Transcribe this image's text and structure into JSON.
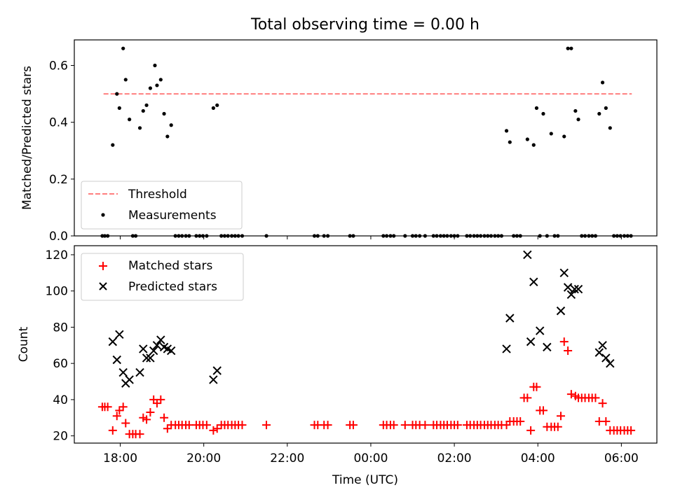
{
  "chart_data": [
    {
      "type": "scatter",
      "title": "Total observing time = 0.00 h",
      "xlabel": "",
      "ylabel": "Matched/Predicted stars",
      "x_range_hours": [
        16.9,
        30.85
      ],
      "ylim": [
        0,
        0.69
      ],
      "yticks": [
        0.0,
        0.2,
        0.4,
        0.6
      ],
      "ytick_labels": [
        "0.0",
        "0.2",
        "0.4",
        "0.6"
      ],
      "threshold": {
        "name": "Threshold",
        "value": 0.5,
        "x_start_hours": 17.6,
        "x_end_hours": 30.25,
        "color": "#ff7f7f",
        "style": "dashed"
      },
      "legend": {
        "placement": "lower-left",
        "entries": [
          "Threshold",
          "Measurements"
        ]
      },
      "series": [
        {
          "name": "Measurements",
          "color": "#000000",
          "marker": "dot",
          "points": [
            [
              17.82,
              0.32
            ],
            [
              17.92,
              0.5
            ],
            [
              17.98,
              0.45
            ],
            [
              18.07,
              0.66
            ],
            [
              18.13,
              0.55
            ],
            [
              18.22,
              0.41
            ],
            [
              18.47,
              0.38
            ],
            [
              18.55,
              0.44
            ],
            [
              18.63,
              0.46
            ],
            [
              18.72,
              0.52
            ],
            [
              18.83,
              0.6
            ],
            [
              18.88,
              0.53
            ],
            [
              18.97,
              0.55
            ],
            [
              19.05,
              0.43
            ],
            [
              19.13,
              0.35
            ],
            [
              19.22,
              0.39
            ],
            [
              20.23,
              0.45
            ],
            [
              20.32,
              0.46
            ],
            [
              27.25,
              0.37
            ],
            [
              27.33,
              0.33
            ],
            [
              27.75,
              0.34
            ],
            [
              27.9,
              0.32
            ],
            [
              27.97,
              0.45
            ],
            [
              28.13,
              0.43
            ],
            [
              28.32,
              0.36
            ],
            [
              28.63,
              0.35
            ],
            [
              28.72,
              0.66
            ],
            [
              28.8,
              0.66
            ],
            [
              28.9,
              0.44
            ],
            [
              28.97,
              0.41
            ],
            [
              29.47,
              0.43
            ],
            [
              29.55,
              0.54
            ],
            [
              29.63,
              0.45
            ],
            [
              29.73,
              0.38
            ],
            [
              17.57,
              0.0
            ],
            [
              17.63,
              0.0
            ],
            [
              17.7,
              0.0
            ],
            [
              18.3,
              0.0
            ],
            [
              18.37,
              0.0
            ],
            [
              19.32,
              0.0
            ],
            [
              19.4,
              0.0
            ],
            [
              19.48,
              0.0
            ],
            [
              19.57,
              0.0
            ],
            [
              19.65,
              0.0
            ],
            [
              19.82,
              0.0
            ],
            [
              19.9,
              0.0
            ],
            [
              19.98,
              0.0
            ],
            [
              20.07,
              0.0
            ],
            [
              20.42,
              0.0
            ],
            [
              20.5,
              0.0
            ],
            [
              20.58,
              0.0
            ],
            [
              20.67,
              0.0
            ],
            [
              20.75,
              0.0
            ],
            [
              20.83,
              0.0
            ],
            [
              20.92,
              0.0
            ],
            [
              21.5,
              0.0
            ],
            [
              22.65,
              0.0
            ],
            [
              22.73,
              0.0
            ],
            [
              22.88,
              0.0
            ],
            [
              22.97,
              0.0
            ],
            [
              23.5,
              0.0
            ],
            [
              23.58,
              0.0
            ],
            [
              24.3,
              0.0
            ],
            [
              24.38,
              0.0
            ],
            [
              24.47,
              0.0
            ],
            [
              24.55,
              0.0
            ],
            [
              24.82,
              0.0
            ],
            [
              25.0,
              0.0
            ],
            [
              25.08,
              0.0
            ],
            [
              25.17,
              0.0
            ],
            [
              25.3,
              0.0
            ],
            [
              25.5,
              0.0
            ],
            [
              25.58,
              0.0
            ],
            [
              25.67,
              0.0
            ],
            [
              25.75,
              0.0
            ],
            [
              25.83,
              0.0
            ],
            [
              25.92,
              0.0
            ],
            [
              26.0,
              0.0
            ],
            [
              26.08,
              0.0
            ],
            [
              26.3,
              0.0
            ],
            [
              26.38,
              0.0
            ],
            [
              26.47,
              0.0
            ],
            [
              26.55,
              0.0
            ],
            [
              26.63,
              0.0
            ],
            [
              26.72,
              0.0
            ],
            [
              26.8,
              0.0
            ],
            [
              26.88,
              0.0
            ],
            [
              26.97,
              0.0
            ],
            [
              27.05,
              0.0
            ],
            [
              27.13,
              0.0
            ],
            [
              27.42,
              0.0
            ],
            [
              27.5,
              0.0
            ],
            [
              27.58,
              0.0
            ],
            [
              28.05,
              0.0
            ],
            [
              28.22,
              0.0
            ],
            [
              28.4,
              0.0
            ],
            [
              28.48,
              0.0
            ],
            [
              29.05,
              0.0
            ],
            [
              29.13,
              0.0
            ],
            [
              29.22,
              0.0
            ],
            [
              29.3,
              0.0
            ],
            [
              29.38,
              0.0
            ],
            [
              29.82,
              0.0
            ],
            [
              29.9,
              0.0
            ],
            [
              29.98,
              0.0
            ],
            [
              30.07,
              0.0
            ],
            [
              30.15,
              0.0
            ],
            [
              30.23,
              0.0
            ]
          ]
        }
      ]
    },
    {
      "type": "scatter",
      "title": "",
      "xlabel": "Time (UTC)",
      "ylabel": "Count",
      "x_range_hours": [
        16.9,
        30.85
      ],
      "ylim": [
        16,
        125
      ],
      "yticks": [
        20,
        40,
        60,
        80,
        100,
        120
      ],
      "ytick_labels": [
        "20",
        "40",
        "60",
        "80",
        "100",
        "120"
      ],
      "xticks_hours": [
        18,
        20,
        22,
        24,
        26,
        28,
        30
      ],
      "xtick_labels": [
        "18:00",
        "20:00",
        "22:00",
        "00:00",
        "02:00",
        "04:00",
        "06:00"
      ],
      "legend": {
        "placement": "top-left",
        "entries": [
          "Matched stars",
          "Predicted stars"
        ]
      },
      "series": [
        {
          "name": "Matched stars",
          "color": "#ff0000",
          "marker": "plus",
          "points": [
            [
              17.57,
              36
            ],
            [
              17.63,
              36
            ],
            [
              17.7,
              36
            ],
            [
              17.82,
              23
            ],
            [
              17.92,
              31
            ],
            [
              17.98,
              34
            ],
            [
              18.07,
              36
            ],
            [
              18.13,
              27
            ],
            [
              18.22,
              21
            ],
            [
              18.3,
              21
            ],
            [
              18.37,
              21
            ],
            [
              18.47,
              21
            ],
            [
              18.55,
              30
            ],
            [
              18.63,
              29
            ],
            [
              18.72,
              33
            ],
            [
              18.8,
              40
            ],
            [
              18.88,
              38
            ],
            [
              18.97,
              40
            ],
            [
              19.05,
              30
            ],
            [
              19.13,
              24
            ],
            [
              19.22,
              26
            ],
            [
              19.32,
              26
            ],
            [
              19.4,
              26
            ],
            [
              19.48,
              26
            ],
            [
              19.57,
              26
            ],
            [
              19.65,
              26
            ],
            [
              19.82,
              26
            ],
            [
              19.9,
              26
            ],
            [
              19.98,
              26
            ],
            [
              20.07,
              26
            ],
            [
              20.23,
              23
            ],
            [
              20.32,
              24
            ],
            [
              20.42,
              26
            ],
            [
              20.5,
              26
            ],
            [
              20.58,
              26
            ],
            [
              20.67,
              26
            ],
            [
              20.75,
              26
            ],
            [
              20.83,
              26
            ],
            [
              20.92,
              26
            ],
            [
              21.5,
              26
            ],
            [
              22.65,
              26
            ],
            [
              22.73,
              26
            ],
            [
              22.88,
              26
            ],
            [
              22.97,
              26
            ],
            [
              23.5,
              26
            ],
            [
              23.58,
              26
            ],
            [
              24.3,
              26
            ],
            [
              24.38,
              26
            ],
            [
              24.47,
              26
            ],
            [
              24.55,
              26
            ],
            [
              24.82,
              26
            ],
            [
              25.0,
              26
            ],
            [
              25.08,
              26
            ],
            [
              25.17,
              26
            ],
            [
              25.3,
              26
            ],
            [
              25.5,
              26
            ],
            [
              25.58,
              26
            ],
            [
              25.67,
              26
            ],
            [
              25.75,
              26
            ],
            [
              25.83,
              26
            ],
            [
              25.92,
              26
            ],
            [
              26.0,
              26
            ],
            [
              26.08,
              26
            ],
            [
              26.3,
              26
            ],
            [
              26.38,
              26
            ],
            [
              26.47,
              26
            ],
            [
              26.55,
              26
            ],
            [
              26.63,
              26
            ],
            [
              26.72,
              26
            ],
            [
              26.8,
              26
            ],
            [
              26.88,
              26
            ],
            [
              26.97,
              26
            ],
            [
              27.05,
              26
            ],
            [
              27.13,
              26
            ],
            [
              27.25,
              26
            ],
            [
              27.33,
              28
            ],
            [
              27.42,
              28
            ],
            [
              27.5,
              28
            ],
            [
              27.58,
              28
            ],
            [
              27.67,
              41
            ],
            [
              27.75,
              41
            ],
            [
              27.83,
              23
            ],
            [
              27.9,
              47
            ],
            [
              27.97,
              47
            ],
            [
              28.05,
              34
            ],
            [
              28.13,
              34
            ],
            [
              28.22,
              25
            ],
            [
              28.32,
              25
            ],
            [
              28.4,
              25
            ],
            [
              28.48,
              25
            ],
            [
              28.55,
              31
            ],
            [
              28.63,
              72
            ],
            [
              28.72,
              67
            ],
            [
              28.8,
              43
            ],
            [
              28.9,
              42
            ],
            [
              28.97,
              41
            ],
            [
              29.05,
              41
            ],
            [
              29.13,
              41
            ],
            [
              29.22,
              41
            ],
            [
              29.3,
              41
            ],
            [
              29.38,
              41
            ],
            [
              29.47,
              28
            ],
            [
              29.55,
              38
            ],
            [
              29.63,
              28
            ],
            [
              29.73,
              23
            ],
            [
              29.82,
              23
            ],
            [
              29.9,
              23
            ],
            [
              29.98,
              23
            ],
            [
              30.07,
              23
            ],
            [
              30.15,
              23
            ],
            [
              30.23,
              23
            ]
          ]
        },
        {
          "name": "Predicted stars",
          "color": "#000000",
          "marker": "x",
          "points": [
            [
              17.82,
              72
            ],
            [
              17.92,
              62
            ],
            [
              17.98,
              76
            ],
            [
              18.07,
              55
            ],
            [
              18.13,
              49
            ],
            [
              18.22,
              51
            ],
            [
              18.47,
              55
            ],
            [
              18.55,
              68
            ],
            [
              18.63,
              63
            ],
            [
              18.72,
              63
            ],
            [
              18.8,
              67
            ],
            [
              18.88,
              70
            ],
            [
              18.97,
              73
            ],
            [
              19.05,
              69
            ],
            [
              19.13,
              68
            ],
            [
              19.22,
              67
            ],
            [
              20.23,
              51
            ],
            [
              20.32,
              56
            ],
            [
              27.25,
              68
            ],
            [
              27.33,
              85
            ],
            [
              27.75,
              120
            ],
            [
              27.83,
              72
            ],
            [
              27.9,
              105
            ],
            [
              28.05,
              78
            ],
            [
              28.22,
              69
            ],
            [
              28.55,
              89
            ],
            [
              28.63,
              110
            ],
            [
              28.72,
              102
            ],
            [
              28.8,
              98
            ],
            [
              28.88,
              101
            ],
            [
              28.97,
              101
            ],
            [
              29.47,
              66
            ],
            [
              29.55,
              70
            ],
            [
              29.63,
              63
            ],
            [
              29.73,
              60
            ]
          ]
        }
      ]
    }
  ]
}
